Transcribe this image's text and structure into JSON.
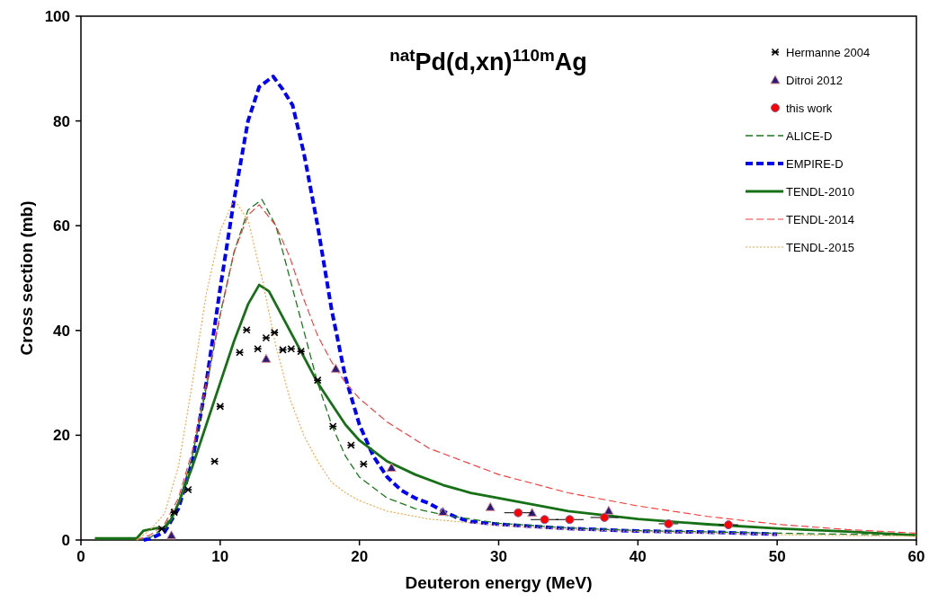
{
  "chart_data": {
    "type": "line",
    "title": "$^{nat}$Pd(d,xn)$^{110m}$Ag",
    "xlabel": "Deuteron energy (MeV)",
    "ylabel": "Cross section (mb)",
    "xlim": [
      0,
      60
    ],
    "xticks": [
      0,
      10,
      20,
      30,
      40,
      50,
      60
    ],
    "ylim": [
      0,
      100
    ],
    "yticks": [
      0,
      20,
      40,
      60,
      80,
      100
    ],
    "grid": false,
    "legend": "top right",
    "series": [
      {
        "name": "Hermanne 2004",
        "type": "scatter",
        "marker": "cross",
        "color": "#000000",
        "x": [
          5.8,
          6.7,
          7.7,
          9.6,
          10.0,
          11.4,
          11.9,
          12.7,
          13.3,
          13.9,
          14.5,
          15.1,
          15.8,
          17.0,
          18.1,
          19.4,
          20.3
        ],
        "values": [
          2.1,
          5.3,
          9.6,
          15.0,
          25.5,
          35.8,
          40.1,
          36.5,
          38.6,
          39.6,
          36.3,
          36.5,
          36.0,
          30.5,
          21.7,
          18.1,
          14.5
        ]
      },
      {
        "name": "Ditroi 2012",
        "type": "scatter",
        "marker": "triangle",
        "color": "#2a1a7a",
        "x": [
          6.5,
          13.3,
          18.3,
          22.3,
          26.0,
          29.4,
          32.4,
          37.9
        ],
        "values": [
          0.9,
          34.6,
          32.7,
          13.8,
          5.4,
          6.3,
          5.2,
          5.6
        ]
      },
      {
        "name": "this work",
        "type": "scatter",
        "marker": "circle",
        "color": "#ff0000",
        "x": [
          31.4,
          33.3,
          35.1,
          37.6,
          42.2,
          46.5
        ],
        "values": [
          5.2,
          3.9,
          3.9,
          4.3,
          3.1,
          2.9
        ],
        "xerrors": [
          1.0,
          1.0,
          1.0,
          1.0,
          0.7,
          0.7
        ]
      },
      {
        "name": "ALICE-D",
        "line_style": "dashed",
        "color": "#1a7a1a",
        "x": [
          4,
          5,
          6,
          7,
          8,
          9,
          10,
          11,
          12,
          13,
          14,
          15,
          16,
          17,
          18,
          19,
          20,
          22,
          24,
          26,
          30,
          35,
          40,
          50,
          60
        ],
        "values": [
          0,
          0.5,
          2.5,
          7,
          16,
          29,
          43,
          55,
          63,
          65,
          60,
          50,
          40,
          30,
          22,
          16,
          12,
          8,
          6,
          4.8,
          3.2,
          2.3,
          1.8,
          1.3,
          0.9
        ]
      },
      {
        "name": "EMPIRE-D",
        "line_style": "dashed",
        "color": "#0000ff",
        "x": [
          4.5,
          5,
          6,
          7,
          8,
          9,
          10,
          11,
          12,
          12.8,
          13.8,
          14.5,
          15.2,
          16,
          17,
          18,
          19,
          20,
          21,
          22,
          23,
          24,
          25,
          26,
          27,
          28,
          30,
          35,
          40,
          45,
          50
        ],
        "values": [
          0,
          0.3,
          1.5,
          6,
          15,
          30,
          48,
          65,
          80,
          86.5,
          88.5,
          86,
          83,
          74,
          60,
          44,
          31,
          22,
          16,
          12,
          9.5,
          8,
          7,
          5.5,
          4.3,
          3.5,
          3,
          2.2,
          1.7,
          1.5,
          1.1
        ]
      },
      {
        "name": "TENDL-2010",
        "line_style": "solid",
        "color": "#167016",
        "x": [
          1,
          4,
          4.5,
          5.5,
          6,
          6.5,
          7,
          8,
          9,
          10,
          11,
          12,
          12.8,
          13.5,
          14,
          15,
          16,
          17,
          18,
          19,
          20,
          22,
          24,
          26,
          28,
          30,
          35,
          40,
          45,
          50,
          55,
          60
        ],
        "values": [
          0.3,
          0.3,
          1.8,
          2.3,
          2.2,
          4,
          7,
          14,
          22,
          30,
          38,
          45,
          48.7,
          47.5,
          45,
          40,
          35,
          30,
          26,
          22,
          19,
          15,
          12.5,
          10.5,
          9,
          8,
          5.5,
          4,
          3,
          2.2,
          1.6,
          0.9
        ]
      },
      {
        "name": "TENDL-2014",
        "line_style": "dashed",
        "color": "#ff3333",
        "x": [
          4,
          5,
          6,
          7,
          8,
          9,
          10,
          11,
          12,
          12.8,
          14,
          15,
          16,
          17,
          18,
          19,
          20,
          22,
          25,
          30,
          35,
          40,
          45,
          50,
          55,
          60
        ],
        "values": [
          0,
          1,
          3,
          8,
          17,
          30,
          43,
          55,
          62,
          64,
          60,
          54,
          46,
          39,
          34,
          30,
          27,
          22.5,
          17.5,
          12.5,
          9,
          6.5,
          4.5,
          3,
          2,
          1.3
        ]
      },
      {
        "name": "TENDL-2015",
        "line_style": "dotted",
        "color": "#ffa040",
        "x": [
          4,
          5,
          6,
          7,
          8,
          9,
          10,
          11,
          12,
          13,
          14,
          15,
          16,
          17,
          18,
          19,
          20,
          22,
          25,
          30,
          35,
          40,
          50,
          60
        ],
        "values": [
          0,
          2,
          5,
          14,
          30,
          47,
          59,
          65,
          61,
          50,
          37,
          27,
          20,
          15,
          11,
          9,
          7.5,
          5.5,
          4,
          2.8,
          2,
          1.6,
          1,
          0.7
        ]
      }
    ]
  }
}
